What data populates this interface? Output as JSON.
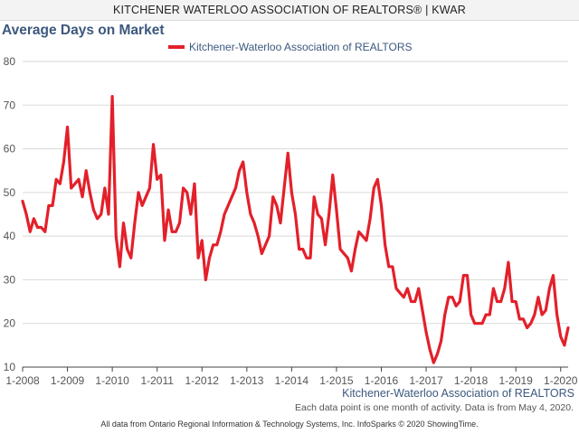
{
  "header": {
    "text": "KITCHENER WATERLOO ASSOCIATION OF REALTORS® | KWAR"
  },
  "chart_data": {
    "type": "line",
    "title": "Average Days on Market",
    "ylim": [
      10,
      80
    ],
    "yticks": [
      10,
      20,
      30,
      40,
      50,
      60,
      70,
      80
    ],
    "xlabels": [
      "1-2008",
      "1-2009",
      "1-2010",
      "1-2011",
      "1-2012",
      "1-2013",
      "1-2014",
      "1-2015",
      "1-2016",
      "1-2017",
      "1-2018",
      "1-2019",
      "1-2020"
    ],
    "grid": true,
    "legend_position": "top-center",
    "series": [
      {
        "name": "Kitchener-Waterloo Association of REALTORS",
        "color": "#e3202a",
        "values": [
          48,
          45,
          41,
          44,
          42,
          42,
          41,
          47,
          47,
          53,
          52,
          57,
          65,
          51,
          52,
          53,
          49,
          55,
          50,
          46,
          44,
          45,
          51,
          45,
          72,
          40,
          33,
          43,
          37,
          35,
          43,
          50,
          47,
          49,
          51,
          61,
          53,
          54,
          39,
          46,
          41,
          41,
          43,
          51,
          50,
          45,
          52,
          35,
          39,
          30,
          35,
          38,
          38,
          41,
          45,
          47,
          49,
          51,
          55,
          57,
          50,
          45,
          43,
          40,
          36,
          38,
          40,
          49,
          47,
          43,
          51,
          59,
          50,
          45,
          37,
          37,
          35,
          35,
          49,
          45,
          44,
          38,
          45,
          54,
          46,
          37,
          36,
          35,
          32,
          37,
          41,
          40,
          39,
          44,
          51,
          53,
          47,
          38,
          33,
          33,
          28,
          27,
          26,
          28,
          25,
          25,
          28,
          23,
          18,
          14,
          11,
          13,
          16,
          22,
          26,
          26,
          24,
          25,
          31,
          31,
          22,
          20,
          20,
          20,
          22,
          22,
          28,
          25,
          25,
          28,
          34,
          25,
          25,
          21,
          21,
          19,
          20,
          22,
          26,
          22,
          23,
          28,
          31,
          22,
          17,
          15,
          19
        ]
      }
    ],
    "branding": "Kitchener-Waterloo Association of REALTORS",
    "note": "Each data point is one month of activity. Data is from May 4, 2020.",
    "footer": "All data from Ontario Regional Information & Technology Systems, Inc. InfoSparks © 2020 ShowingTime."
  }
}
